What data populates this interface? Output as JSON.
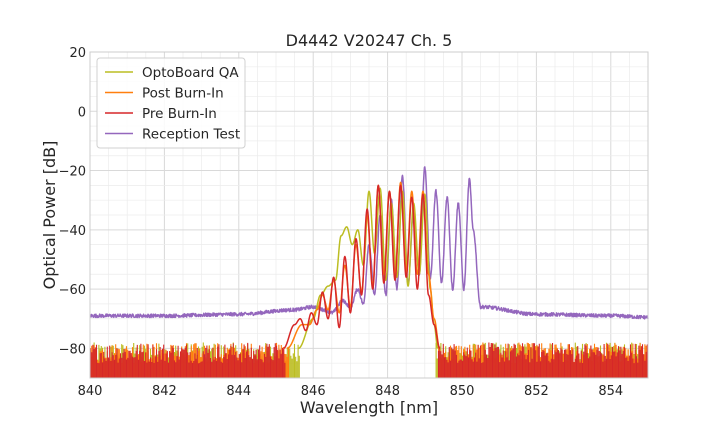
{
  "chart_data": {
    "type": "line",
    "title": "D4442 V20247 Ch. 5",
    "xlabel": "Wavelength [nm]",
    "ylabel": "Optical Power [dB]",
    "xlim": [
      840,
      855
    ],
    "ylim": [
      -90,
      20
    ],
    "xticks": [
      "840",
      "842",
      "844",
      "846",
      "848",
      "850",
      "852",
      "854"
    ],
    "yticks": [
      "20",
      "0",
      "−20",
      "−40",
      "−60",
      "−80"
    ],
    "grid": true,
    "legend_position": "top-left",
    "noise_floor": -88,
    "series": [
      {
        "name": "OptoBoard QA",
        "color": "#bcbd22",
        "floor": -80,
        "x": [
          845.6,
          846.0,
          846.2,
          846.4,
          846.6,
          846.75,
          846.9,
          847.05,
          847.2,
          847.35,
          847.5,
          847.65,
          847.8,
          847.95,
          848.1,
          848.25,
          848.4,
          848.55,
          848.7,
          848.85,
          849.0,
          849.15,
          849.25,
          849.35
        ],
        "y": [
          -80,
          -70,
          -62,
          -59,
          -57,
          -42,
          -39,
          -45,
          -40,
          -52,
          -27,
          -48,
          -26,
          -57,
          -31,
          -56,
          -27,
          -59,
          -31,
          -55,
          -28,
          -60,
          -72,
          -80
        ]
      },
      {
        "name": "Post Burn-In",
        "color": "#ff7f0e",
        "floor": -80,
        "x": [
          845.3,
          845.7,
          845.9,
          846.1,
          846.25,
          846.4,
          846.55,
          846.7,
          846.85,
          847.0,
          847.15,
          847.3,
          847.45,
          847.6,
          847.75,
          847.9,
          848.05,
          848.2,
          848.35,
          848.5,
          848.65,
          848.8,
          848.95,
          849.1,
          849.25,
          849.4
        ],
        "y": [
          -80,
          -72,
          -72,
          -67,
          -62,
          -67,
          -57,
          -68,
          -52,
          -66,
          -45,
          -61,
          -35,
          -59,
          -25,
          -55,
          -27,
          -55,
          -24,
          -54,
          -27,
          -55,
          -27,
          -55,
          -70,
          -80
        ]
      },
      {
        "name": "Pre Burn-In",
        "color": "#d62728",
        "floor": -80,
        "x": [
          845.2,
          845.5,
          845.65,
          845.8,
          845.95,
          846.1,
          846.25,
          846.4,
          846.55,
          846.7,
          846.85,
          847.0,
          847.15,
          847.3,
          847.45,
          847.6,
          847.75,
          847.9,
          848.05,
          848.2,
          848.35,
          848.5,
          848.65,
          848.8,
          848.95,
          849.1,
          849.25,
          849.4
        ],
        "y": [
          -80,
          -72,
          -70,
          -74,
          -68,
          -72,
          -61,
          -70,
          -56,
          -73,
          -49,
          -68,
          -43,
          -62,
          -33,
          -60,
          -25,
          -58,
          -27,
          -57,
          -25,
          -56,
          -29,
          -60,
          -28,
          -62,
          -72,
          -80
        ]
      },
      {
        "name": "Reception Test",
        "color": "#9467bd",
        "x": [
          840,
          842,
          844,
          845.5,
          846.0,
          846.3,
          846.5,
          846.8,
          847.0,
          847.2,
          847.35,
          847.5,
          847.65,
          847.8,
          847.95,
          848.1,
          848.25,
          848.4,
          848.55,
          848.7,
          848.85,
          849.0,
          849.15,
          849.3,
          849.45,
          849.6,
          849.75,
          849.9,
          850.05,
          850.2,
          850.3,
          850.5,
          852,
          854,
          855
        ],
        "y": [
          -69,
          -69,
          -68.5,
          -67,
          -66,
          -67,
          -68,
          -64,
          -66,
          -60,
          -65,
          -45,
          -62,
          -35,
          -62,
          -30,
          -60,
          -22,
          -58,
          -34,
          -55,
          -19,
          -56,
          -27,
          -58,
          -29,
          -60,
          -31,
          -60,
          -23,
          -40,
          -66,
          -68.5,
          -69,
          -69.5
        ]
      }
    ]
  }
}
